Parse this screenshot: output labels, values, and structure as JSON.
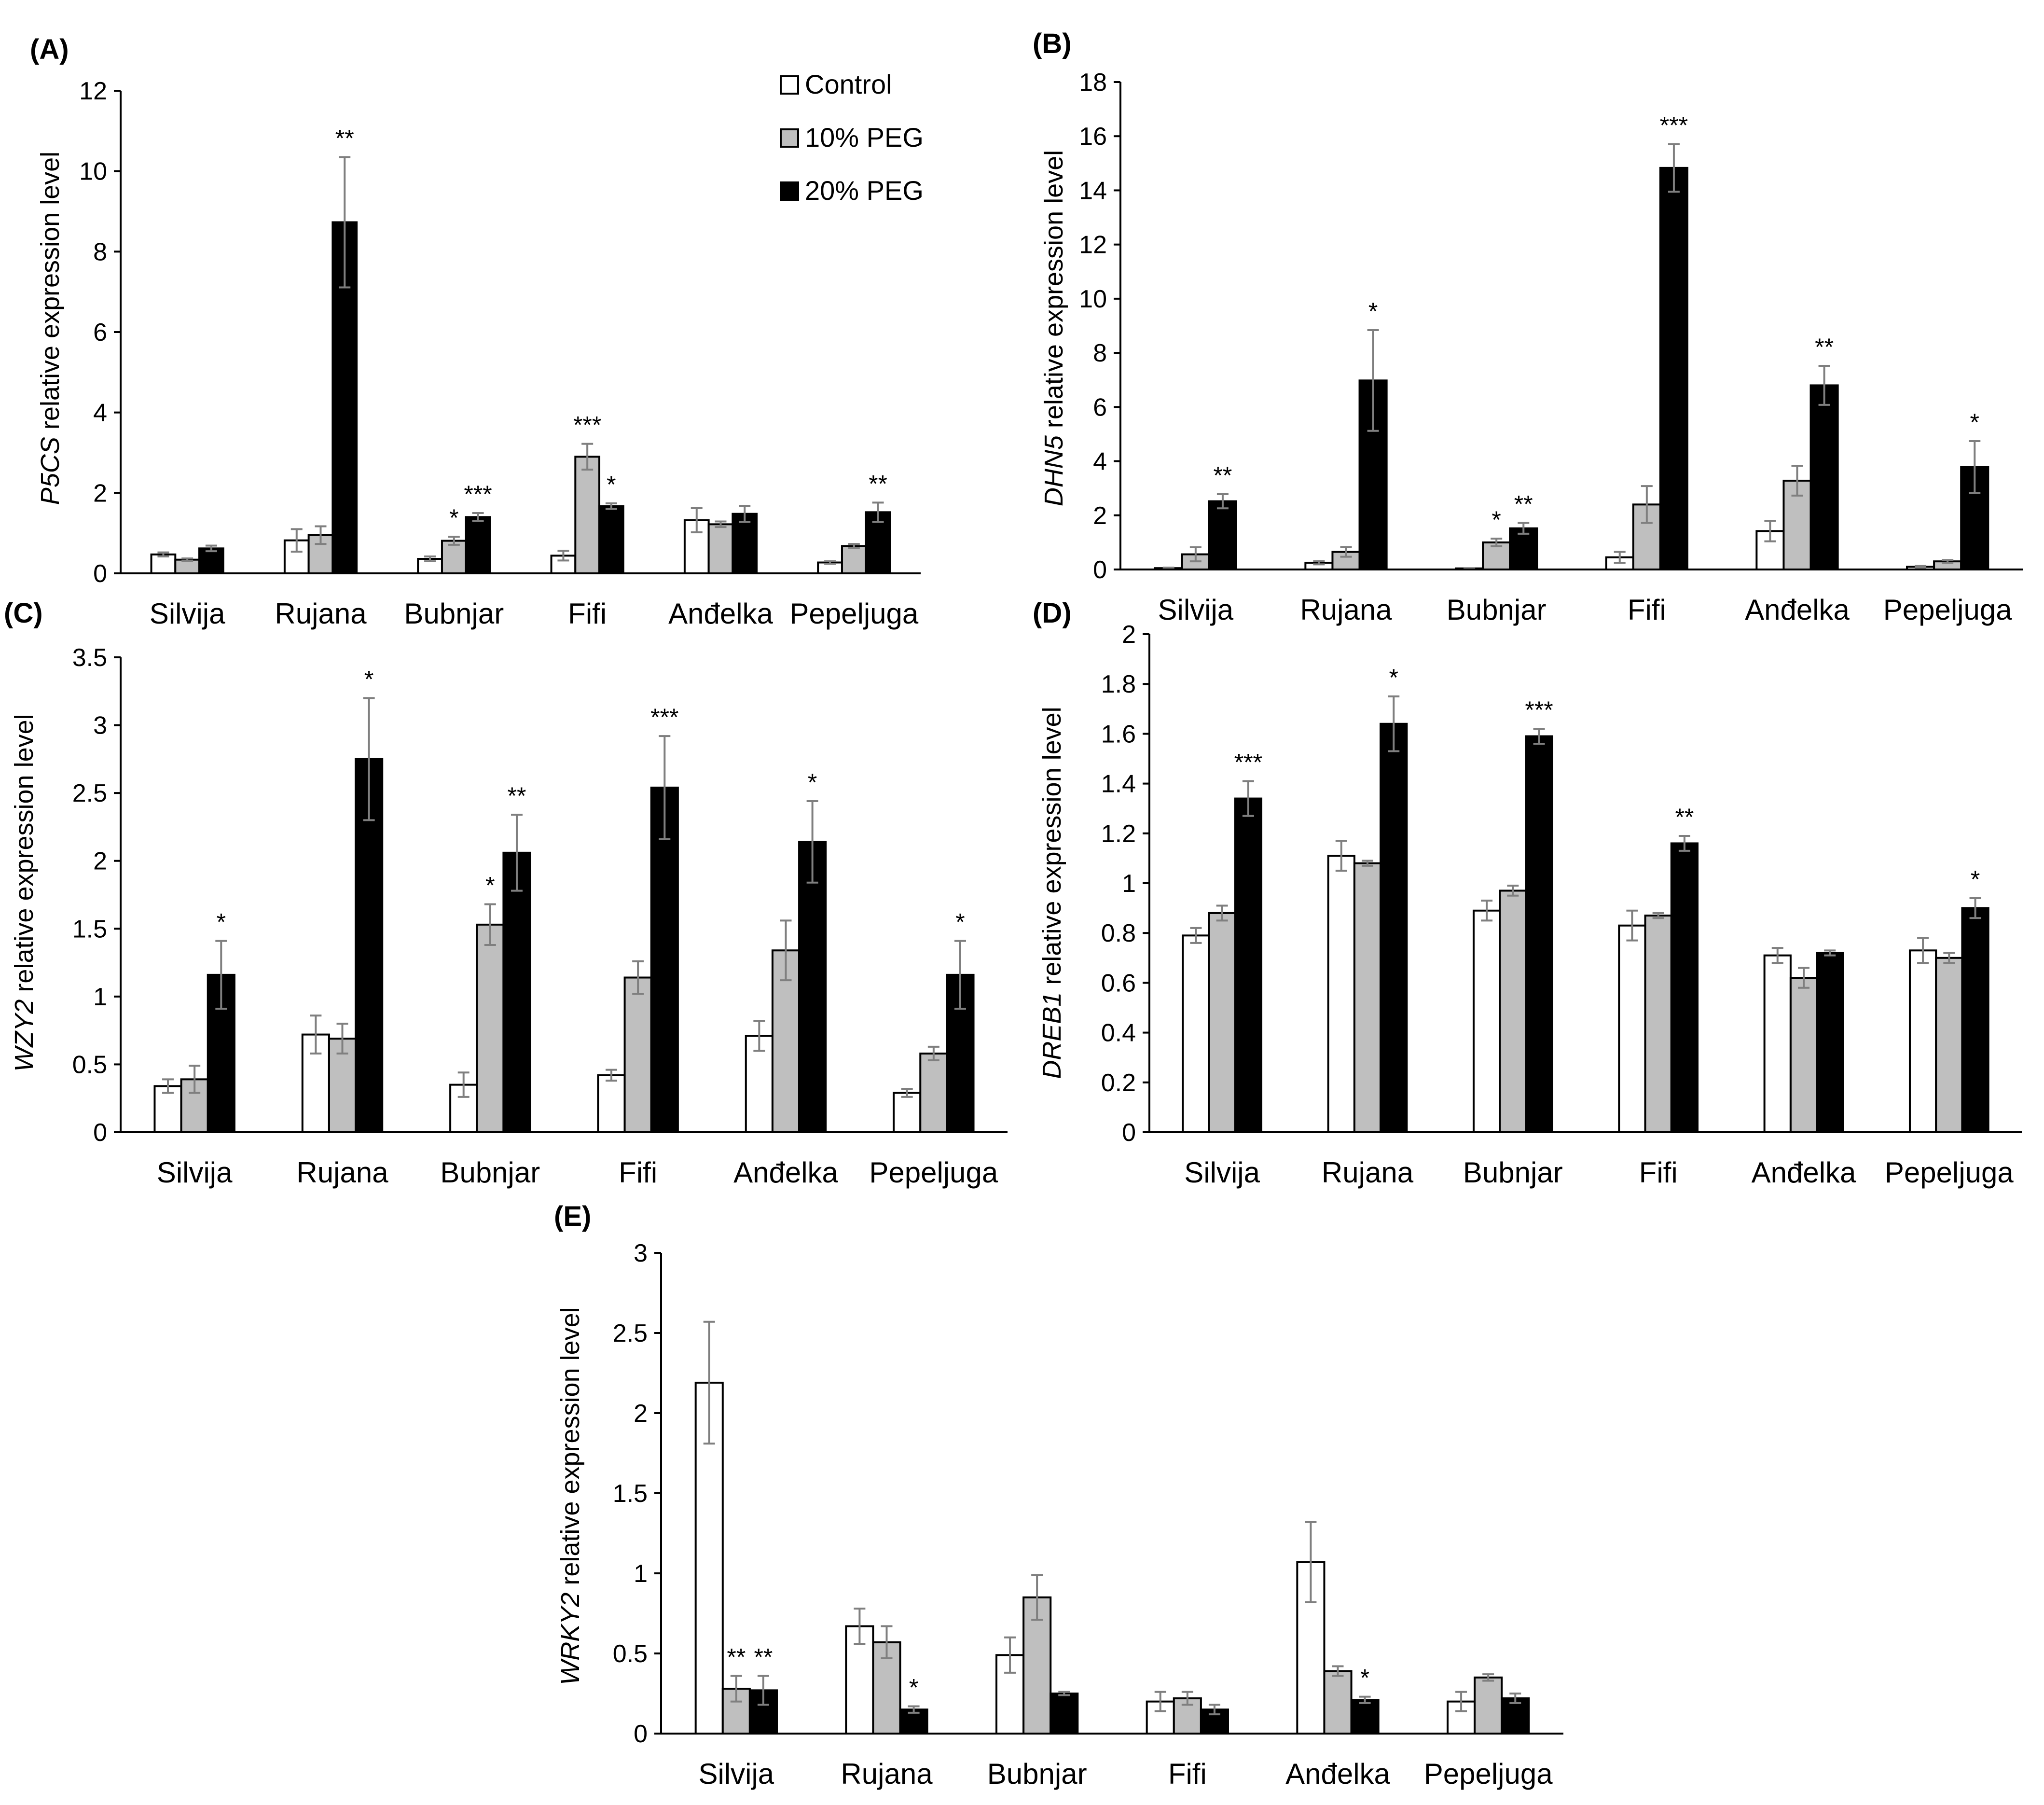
{
  "legend": {
    "entries": [
      {
        "name": "Control",
        "color": "#ffffff"
      },
      {
        "name": "10% PEG",
        "color": "#bfbfbf"
      },
      {
        "name": "20% PEG",
        "color": "#000000"
      }
    ]
  },
  "chart_data": [
    {
      "type": "bar",
      "panel": "(A)",
      "gene": "P5CS",
      "ylabel_suffix": " relative expression level",
      "categories": [
        "Silvija",
        "Rujana",
        "Bubnjar",
        "Fifi",
        "Anđelka",
        "Pepeljuga"
      ],
      "ylim": [
        0,
        12
      ],
      "yticks": [
        0,
        2,
        4,
        6,
        8,
        10,
        12
      ],
      "series": [
        {
          "name": "Control",
          "values": [
            0.47,
            0.82,
            0.36,
            0.44,
            1.32,
            0.27
          ],
          "errors": [
            0.05,
            0.28,
            0.06,
            0.12,
            0.3,
            0.03
          ],
          "sig": [
            "",
            "",
            "",
            "",
            "",
            ""
          ]
        },
        {
          "name": "10% PEG",
          "values": [
            0.34,
            0.95,
            0.81,
            2.9,
            1.22,
            0.68
          ],
          "errors": [
            0.03,
            0.22,
            0.1,
            0.32,
            0.07,
            0.05
          ],
          "sig": [
            "",
            "",
            "*",
            "***",
            "",
            ""
          ]
        },
        {
          "name": "20% PEG",
          "values": [
            0.62,
            8.73,
            1.4,
            1.67,
            1.48,
            1.52
          ],
          "errors": [
            0.07,
            1.62,
            0.1,
            0.07,
            0.2,
            0.24
          ],
          "sig": [
            "",
            "**",
            "***",
            "*",
            "",
            "**"
          ]
        }
      ]
    },
    {
      "type": "bar",
      "panel": "(B)",
      "gene": "DHN5",
      "ylabel_suffix": " relative expression level",
      "categories": [
        "Silvija",
        "Rujana",
        "Bubnjar",
        "Fifi",
        "Anđelka",
        "Pepeljuga"
      ],
      "ylim": [
        0,
        18
      ],
      "yticks": [
        0,
        2,
        4,
        6,
        8,
        10,
        12,
        14,
        16,
        18
      ],
      "series": [
        {
          "name": "Control",
          "values": [
            0.05,
            0.25,
            0.04,
            0.45,
            1.42,
            0.1
          ],
          "errors": [
            0.02,
            0.06,
            0.01,
            0.2,
            0.38,
            0.03
          ],
          "sig": [
            "",
            "",
            "",
            "",
            "",
            ""
          ]
        },
        {
          "name": "10% PEG",
          "values": [
            0.56,
            0.65,
            1.0,
            2.4,
            3.28,
            0.3
          ],
          "errors": [
            0.26,
            0.18,
            0.14,
            0.68,
            0.55,
            0.05
          ],
          "sig": [
            "",
            "",
            "*",
            "",
            "",
            ""
          ]
        },
        {
          "name": "20% PEG",
          "values": [
            2.52,
            6.98,
            1.52,
            14.83,
            6.8,
            3.78
          ],
          "errors": [
            0.26,
            1.86,
            0.2,
            0.88,
            0.72,
            0.96
          ],
          "sig": [
            "**",
            "*",
            "**",
            "***",
            "**",
            "*"
          ]
        }
      ]
    },
    {
      "type": "bar",
      "panel": "(C)",
      "gene": "WZY2",
      "ylabel_suffix": " relative expression level",
      "categories": [
        "Silvija",
        "Rujana",
        "Bubnjar",
        "Fifi",
        "Anđelka",
        "Pepeljuga"
      ],
      "ylim": [
        0,
        3.5
      ],
      "yticks": [
        0,
        0.5,
        1,
        1.5,
        2,
        2.5,
        3,
        3.5
      ],
      "series": [
        {
          "name": "Control",
          "values": [
            0.34,
            0.72,
            0.35,
            0.42,
            0.71,
            0.29
          ],
          "errors": [
            0.05,
            0.14,
            0.09,
            0.04,
            0.11,
            0.03
          ],
          "sig": [
            "",
            "",
            "",
            "",
            "",
            ""
          ]
        },
        {
          "name": "10% PEG",
          "values": [
            0.39,
            0.69,
            1.53,
            1.14,
            1.34,
            0.58
          ],
          "errors": [
            0.1,
            0.11,
            0.15,
            0.12,
            0.22,
            0.05
          ],
          "sig": [
            "",
            "",
            "*",
            "",
            "",
            ""
          ]
        },
        {
          "name": "20% PEG",
          "values": [
            1.16,
            2.75,
            2.06,
            2.54,
            2.14,
            1.16
          ],
          "errors": [
            0.25,
            0.45,
            0.28,
            0.38,
            0.3,
            0.25
          ],
          "sig": [
            "*",
            "*",
            "**",
            "***",
            "*",
            "*"
          ]
        }
      ]
    },
    {
      "type": "bar",
      "panel": "(D)",
      "gene": "DREB1",
      "ylabel_suffix": " relative expression level",
      "categories": [
        "Silvija",
        "Rujana",
        "Bubnjar",
        "Fifi",
        "Anđelka",
        "Pepeljuga"
      ],
      "ylim": [
        0,
        2
      ],
      "yticks": [
        0,
        0.2,
        0.4,
        0.6,
        0.8,
        1,
        1.2,
        1.4,
        1.6,
        1.8,
        2
      ],
      "series": [
        {
          "name": "Control",
          "values": [
            0.79,
            1.11,
            0.89,
            0.83,
            0.71,
            0.73
          ],
          "errors": [
            0.03,
            0.06,
            0.04,
            0.06,
            0.03,
            0.05
          ],
          "sig": [
            "",
            "",
            "",
            "",
            "",
            ""
          ]
        },
        {
          "name": "10% PEG",
          "values": [
            0.88,
            1.08,
            0.97,
            0.87,
            0.62,
            0.7
          ],
          "errors": [
            0.03,
            0.01,
            0.02,
            0.01,
            0.04,
            0.02
          ],
          "sig": [
            "",
            "",
            "",
            "",
            "",
            ""
          ]
        },
        {
          "name": "20% PEG",
          "values": [
            1.34,
            1.64,
            1.59,
            1.16,
            0.72,
            0.9
          ],
          "errors": [
            0.07,
            0.11,
            0.03,
            0.03,
            0.01,
            0.04
          ],
          "sig": [
            "***",
            "*",
            "***",
            "**",
            "",
            "*"
          ]
        }
      ]
    },
    {
      "type": "bar",
      "panel": "(E)",
      "gene": "WRKY2",
      "ylabel_suffix": " relative expression level",
      "categories": [
        "Silvija",
        "Rujana",
        "Bubnjar",
        "Fifi",
        "Anđelka",
        "Pepeljuga"
      ],
      "ylim": [
        0,
        3
      ],
      "yticks": [
        0,
        0.5,
        1,
        1.5,
        2,
        2.5,
        3
      ],
      "series": [
        {
          "name": "Control",
          "values": [
            2.19,
            0.67,
            0.49,
            0.2,
            1.07,
            0.2
          ],
          "errors": [
            0.38,
            0.11,
            0.11,
            0.06,
            0.25,
            0.06
          ],
          "sig": [
            "",
            "",
            "",
            "",
            "",
            ""
          ]
        },
        {
          "name": "10% PEG",
          "values": [
            0.28,
            0.57,
            0.85,
            0.22,
            0.39,
            0.35
          ],
          "errors": [
            0.08,
            0.1,
            0.14,
            0.04,
            0.03,
            0.02
          ],
          "sig": [
            "**",
            "",
            "",
            "",
            "",
            ""
          ]
        },
        {
          "name": "20% PEG",
          "values": [
            0.27,
            0.15,
            0.25,
            0.15,
            0.21,
            0.22
          ],
          "errors": [
            0.09,
            0.02,
            0.01,
            0.03,
            0.02,
            0.03
          ],
          "sig": [
            "**",
            "*",
            "",
            "",
            "*",
            ""
          ]
        }
      ]
    }
  ]
}
